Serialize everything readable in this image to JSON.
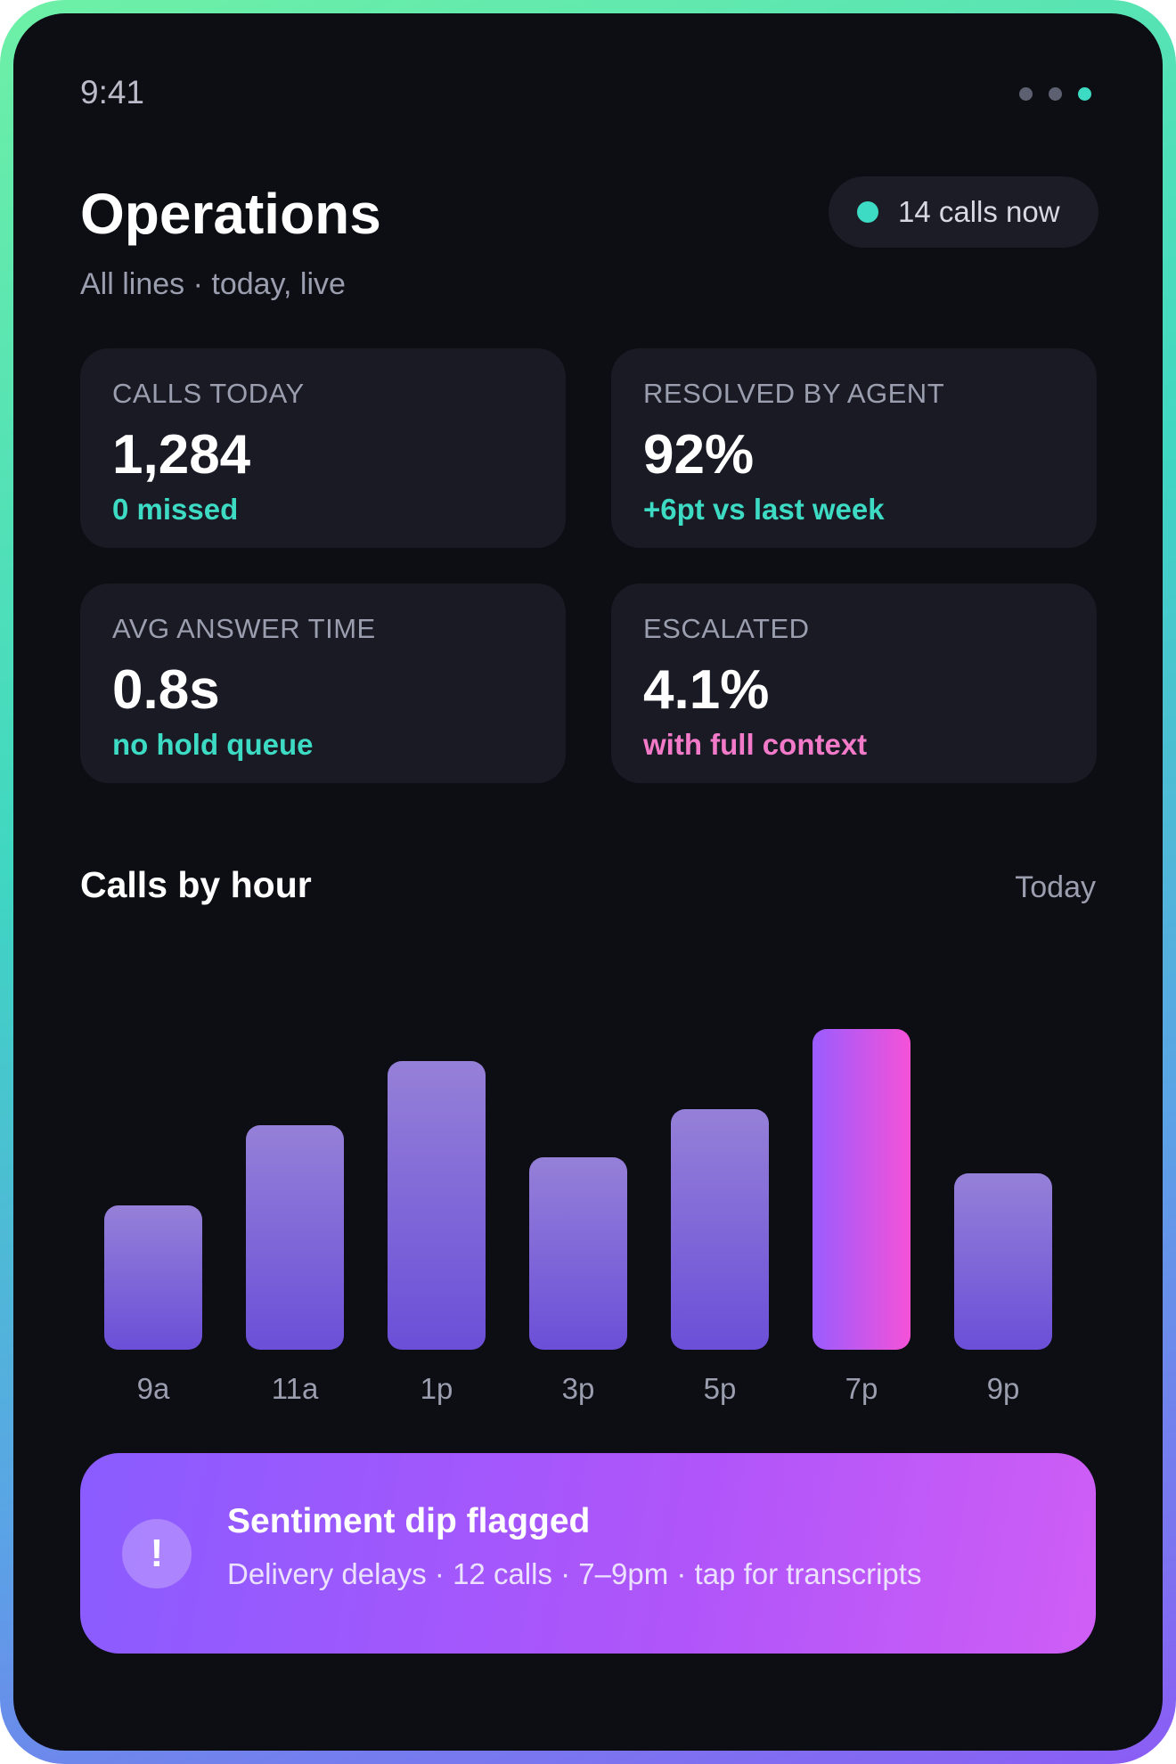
{
  "status_bar": {
    "time": "9:41"
  },
  "header": {
    "title": "Operations",
    "subtitle": "All lines · today, live",
    "live_pill": {
      "label": "14 calls now",
      "dot_color": "#3ddbc4"
    }
  },
  "stats": [
    {
      "label": "CALLS TODAY",
      "value": "1,284",
      "delta": "0 missed",
      "delta_tone": "teal"
    },
    {
      "label": "RESOLVED BY AGENT",
      "value": "92%",
      "delta": "+6pt vs last week",
      "delta_tone": "teal"
    },
    {
      "label": "AVG ANSWER TIME",
      "value": "0.8s",
      "delta": "no hold queue",
      "delta_tone": "teal"
    },
    {
      "label": "ESCALATED",
      "value": "4.1%",
      "delta": "with full context",
      "delta_tone": "pink"
    }
  ],
  "chart_section": {
    "title": "Calls by hour",
    "range": "Today"
  },
  "chart_data": {
    "type": "bar",
    "categories": [
      "9a",
      "11a",
      "1p",
      "3p",
      "5p",
      "7p",
      "9p"
    ],
    "values": [
      45,
      70,
      90,
      60,
      75,
      100,
      55
    ],
    "highlight_index": 5,
    "ylim": [
      0,
      100
    ],
    "grid": false,
    "colors": {
      "bar_top": "#9580d8",
      "bar_bottom": "#6b4fd8",
      "highlight_left": "#9a5cff",
      "highlight_right": "#f552d8"
    }
  },
  "alert": {
    "icon": "exclamation-icon",
    "icon_glyph": "!",
    "title": "Sentiment dip flagged",
    "body": "Delivery delays · 12 calls · 7–9pm · tap for transcripts"
  },
  "colors": {
    "background": "#0d0e14",
    "card": "#191a24",
    "accent_teal": "#3ddbc4",
    "accent_pink": "#f27ac8"
  }
}
